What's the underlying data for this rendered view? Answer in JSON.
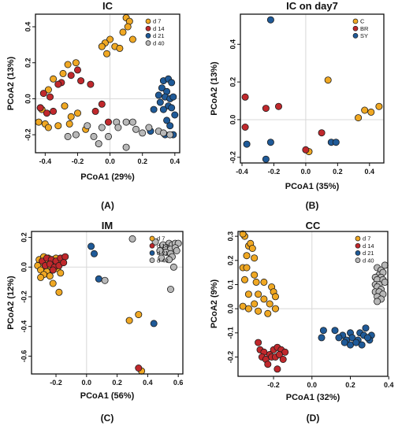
{
  "series_colors": [
    "#f0a823",
    "#c0282c",
    "#1f5a98",
    "#b8b8b8"
  ],
  "chart_data": [
    {
      "type": "scatter",
      "title": "IC",
      "panel_label": "(A)",
      "xlabel": "PCoA1 (29%)",
      "ylabel": "PCoA2 (13%)",
      "xlim": [
        -0.46,
        0.43
      ],
      "ylim": [
        -0.3,
        0.47
      ],
      "xticks": [
        -0.4,
        -0.2,
        0.0,
        0.2,
        0.4
      ],
      "xtick_labels": [
        "-0.4",
        "-0.2",
        "0.0",
        "0.2",
        "0.4"
      ],
      "yticks": [
        -0.2,
        0.0,
        0.2,
        0.4
      ],
      "ytick_labels": [
        "-0.2",
        "0.0",
        "0.2",
        "0.4"
      ],
      "legend_position": "top-right",
      "series": [
        {
          "name": "d 7",
          "x": [
            0.1,
            0.12,
            0.08,
            0.11,
            0.14,
            0.0,
            0.03,
            0.06,
            -0.03,
            -0.05,
            -0.02,
            -0.26,
            -0.21,
            -0.29,
            -0.35,
            -0.38,
            -0.43,
            -0.44,
            -0.4,
            -0.42,
            -0.28,
            -0.2,
            -0.24,
            -0.15,
            -0.25,
            -0.38,
            -0.32
          ],
          "y": [
            0.45,
            0.43,
            0.37,
            0.4,
            0.33,
            0.33,
            0.29,
            0.28,
            0.31,
            0.29,
            0.25,
            0.19,
            0.2,
            0.14,
            0.11,
            0.05,
            -0.05,
            -0.13,
            -0.14,
            -0.06,
            -0.04,
            -0.08,
            -0.1,
            -0.17,
            -0.14,
            -0.16,
            -0.15
          ]
        },
        {
          "name": "d 14",
          "x": [
            -0.2,
            -0.24,
            -0.18,
            -0.12,
            -0.3,
            -0.32,
            -0.41,
            -0.37,
            -0.35,
            -0.05,
            -0.09,
            -0.01,
            -0.43,
            -0.39
          ],
          "y": [
            0.16,
            0.13,
            0.1,
            0.08,
            0.09,
            0.08,
            0.03,
            0.01,
            -0.07,
            -0.03,
            -0.07,
            -0.13,
            -0.05,
            -0.08
          ]
        },
        {
          "name": "d 21",
          "x": [
            0.33,
            0.36,
            0.38,
            0.32,
            0.35,
            0.3,
            0.34,
            0.37,
            0.39,
            0.31,
            0.36,
            0.33,
            0.38,
            0.4,
            0.27,
            0.35,
            0.37,
            0.25,
            0.34,
            0.39
          ],
          "y": [
            0.1,
            0.11,
            0.09,
            0.06,
            0.04,
            0.02,
            0.01,
            0.0,
            0.01,
            -0.02,
            -0.04,
            -0.06,
            -0.05,
            -0.09,
            -0.06,
            -0.12,
            -0.15,
            -0.18,
            -0.2,
            -0.2
          ]
        },
        {
          "name": "d 40",
          "x": [
            0.04,
            0.1,
            0.14,
            0.05,
            0.16,
            0.2,
            0.24,
            0.3,
            0.33,
            0.37,
            -0.05,
            -0.14,
            -0.1,
            -0.21,
            -0.26,
            -0.01,
            -0.07,
            0.1
          ],
          "y": [
            -0.13,
            -0.13,
            -0.13,
            -0.16,
            -0.17,
            -0.19,
            -0.16,
            -0.18,
            -0.19,
            -0.2,
            -0.16,
            -0.15,
            -0.21,
            -0.2,
            -0.21,
            -0.21,
            -0.25,
            -0.27
          ]
        }
      ]
    },
    {
      "type": "scatter",
      "title": "IC on day7",
      "panel_label": "(B)",
      "xlabel": "PCoA1 (35%)",
      "ylabel": "PCoA2 (13%)",
      "xlim": [
        -0.41,
        0.49
      ],
      "ylim": [
        -0.23,
        0.56
      ],
      "xticks": [
        -0.4,
        -0.2,
        0.0,
        0.2,
        0.4
      ],
      "xtick_labels": [
        "-0.4",
        "-0.2",
        "0.0",
        "0.2",
        "0.4"
      ],
      "yticks": [
        -0.2,
        0.0,
        0.2,
        0.4
      ],
      "ytick_labels": [
        "-0.2",
        "0.0",
        "0.2",
        "0.4"
      ],
      "legend_position": "top-right",
      "series": [
        {
          "name": "C",
          "x": [
            0.14,
            0.46,
            0.41,
            0.37,
            0.33,
            0.02
          ],
          "y": [
            0.21,
            0.07,
            0.04,
            0.05,
            0.01,
            -0.17
          ]
        },
        {
          "name": "BR",
          "x": [
            -0.38,
            -0.25,
            -0.17,
            -0.38,
            0.1,
            0.0
          ],
          "y": [
            0.12,
            0.06,
            0.07,
            -0.04,
            -0.07,
            -0.16
          ]
        },
        {
          "name": "SY",
          "x": [
            -0.22,
            -0.37,
            -0.22,
            0.16,
            0.19,
            -0.25
          ],
          "y": [
            0.53,
            -0.13,
            -0.12,
            -0.12,
            -0.12,
            -0.21
          ]
        }
      ]
    },
    {
      "type": "scatter",
      "title": "IM",
      "panel_label": "(C)",
      "xlabel": "PCoA1 (56%)",
      "ylabel": "PCoA2 (12%)",
      "xlim": [
        -0.36,
        0.63
      ],
      "ylim": [
        -0.72,
        0.24
      ],
      "xticks": [
        -0.2,
        0.0,
        0.2,
        0.4,
        0.6
      ],
      "xtick_labels": [
        "-0.2",
        "0.0",
        "0.2",
        "0.4",
        "0.6"
      ],
      "yticks": [
        -0.6,
        -0.4,
        -0.2,
        0.0,
        0.2
      ],
      "ytick_labels": [
        "-0.6",
        "-0.4",
        "-0.2",
        "0.0",
        "0.2"
      ],
      "legend_position": "top-right",
      "series": [
        {
          "name": "d 7",
          "x": [
            -0.31,
            -0.28,
            -0.25,
            -0.22,
            -0.2,
            -0.29,
            -0.26,
            -0.23,
            -0.18,
            -0.32,
            -0.27,
            -0.24,
            -0.21,
            -0.3,
            -0.26,
            -0.22,
            -0.19,
            -0.28,
            -0.24,
            -0.17,
            -0.3,
            -0.22,
            -0.18,
            0.28,
            0.34,
            0.36
          ],
          "y": [
            0.05,
            0.07,
            0.06,
            0.05,
            0.06,
            0.03,
            0.02,
            0.03,
            0.04,
            0.01,
            0.0,
            0.01,
            0.0,
            -0.02,
            -0.03,
            -0.02,
            -0.01,
            -0.05,
            -0.06,
            -0.04,
            -0.07,
            -0.11,
            -0.17,
            -0.36,
            -0.32,
            -0.7
          ]
        },
        {
          "name": "d 14",
          "x": [
            -0.29,
            -0.26,
            -0.23,
            -0.2,
            -0.17,
            -0.14,
            -0.27,
            -0.24,
            -0.21,
            -0.18,
            -0.15,
            -0.22,
            0.34
          ],
          "y": [
            0.04,
            0.06,
            0.05,
            0.04,
            0.06,
            0.07,
            0.01,
            0.02,
            0.0,
            0.01,
            0.03,
            -0.02,
            -0.68
          ]
        },
        {
          "name": "d 21",
          "x": [
            0.03,
            0.05,
            0.08,
            0.44
          ],
          "y": [
            0.14,
            0.09,
            -0.08,
            -0.38
          ]
        },
        {
          "name": "d 40",
          "x": [
            0.3,
            0.45,
            0.5,
            0.54,
            0.56,
            0.58,
            0.6,
            0.52,
            0.55,
            0.58,
            0.48,
            0.52,
            0.55,
            0.59,
            0.56,
            0.49,
            0.54,
            0.12,
            0.57,
            0.55
          ],
          "y": [
            0.19,
            0.17,
            0.15,
            0.16,
            0.15,
            0.16,
            0.16,
            0.13,
            0.12,
            0.13,
            0.11,
            0.1,
            0.09,
            0.11,
            0.07,
            0.06,
            0.05,
            -0.09,
            0.0,
            -0.15
          ]
        }
      ]
    },
    {
      "type": "scatter",
      "title": "CC",
      "panel_label": "(D)",
      "xlabel": "PCoA1 (32%)",
      "ylabel": "PCoA2 (9%)",
      "xlim": [
        -0.385,
        0.395
      ],
      "ylim": [
        -0.28,
        0.32
      ],
      "xticks": [
        -0.2,
        0.0,
        0.2,
        0.4
      ],
      "xtick_labels": [
        "-0.2",
        "0.0",
        "0.2",
        "0.4"
      ],
      "yticks": [
        -0.2,
        -0.1,
        0.0,
        0.1,
        0.2,
        0.3
      ],
      "ytick_labels": [
        "-0.2",
        "-0.1",
        "0.0",
        "0.1",
        "0.2",
        "0.3"
      ],
      "legend_position": "top-right",
      "series": [
        {
          "name": "d 7",
          "x": [
            -0.35,
            -0.36,
            -0.33,
            -0.32,
            -0.31,
            -0.34,
            -0.3,
            -0.36,
            -0.34,
            -0.3,
            -0.29,
            -0.25,
            -0.21,
            -0.2,
            -0.35,
            -0.33,
            -0.28,
            -0.19,
            -0.36,
            -0.3,
            -0.25,
            -0.22,
            -0.33,
            -0.28,
            -0.19,
            -0.23
          ],
          "y": [
            0.3,
            0.31,
            0.26,
            0.27,
            0.25,
            0.22,
            0.21,
            0.17,
            0.17,
            0.14,
            0.11,
            0.11,
            0.09,
            0.07,
            0.12,
            0.06,
            0.06,
            0.05,
            0.01,
            0.02,
            0.04,
            0.02,
            0.0,
            -0.01,
            0.0,
            -0.02
          ]
        },
        {
          "name": "d 14",
          "x": [
            -0.28,
            -0.27,
            -0.25,
            -0.22,
            -0.2,
            -0.18,
            -0.16,
            -0.14,
            -0.26,
            -0.24,
            -0.21,
            -0.19,
            -0.17,
            -0.15,
            -0.23,
            -0.18
          ],
          "y": [
            -0.14,
            -0.17,
            -0.18,
            -0.19,
            -0.17,
            -0.16,
            -0.17,
            -0.18,
            -0.2,
            -0.21,
            -0.2,
            -0.2,
            -0.19,
            -0.21,
            -0.23,
            -0.25
          ]
        },
        {
          "name": "d 21",
          "x": [
            0.06,
            0.12,
            0.16,
            0.2,
            0.25,
            0.28,
            0.31,
            0.14,
            0.18,
            0.21,
            0.24,
            0.27,
            0.3,
            0.17,
            0.2,
            0.23,
            0.26,
            0.29,
            0.05
          ],
          "y": [
            -0.09,
            -0.09,
            -0.11,
            -0.1,
            -0.1,
            -0.08,
            -0.11,
            -0.12,
            -0.13,
            -0.12,
            -0.13,
            -0.11,
            -0.13,
            -0.14,
            -0.15,
            -0.14,
            -0.15,
            -0.12,
            -0.12
          ]
        },
        {
          "name": "d 40",
          "x": [
            0.34,
            0.36,
            0.38,
            0.35,
            0.37,
            0.33,
            0.36,
            0.34,
            0.37,
            0.33,
            0.35,
            0.38,
            0.34,
            0.36,
            0.33,
            0.35,
            0.37,
            0.34,
            0.36,
            0.34
          ],
          "y": [
            0.17,
            0.16,
            0.18,
            0.14,
            0.15,
            0.13,
            0.13,
            0.12,
            0.12,
            0.1,
            0.1,
            0.11,
            0.09,
            0.08,
            0.07,
            0.07,
            0.06,
            0.05,
            0.04,
            0.03
          ]
        }
      ]
    }
  ]
}
